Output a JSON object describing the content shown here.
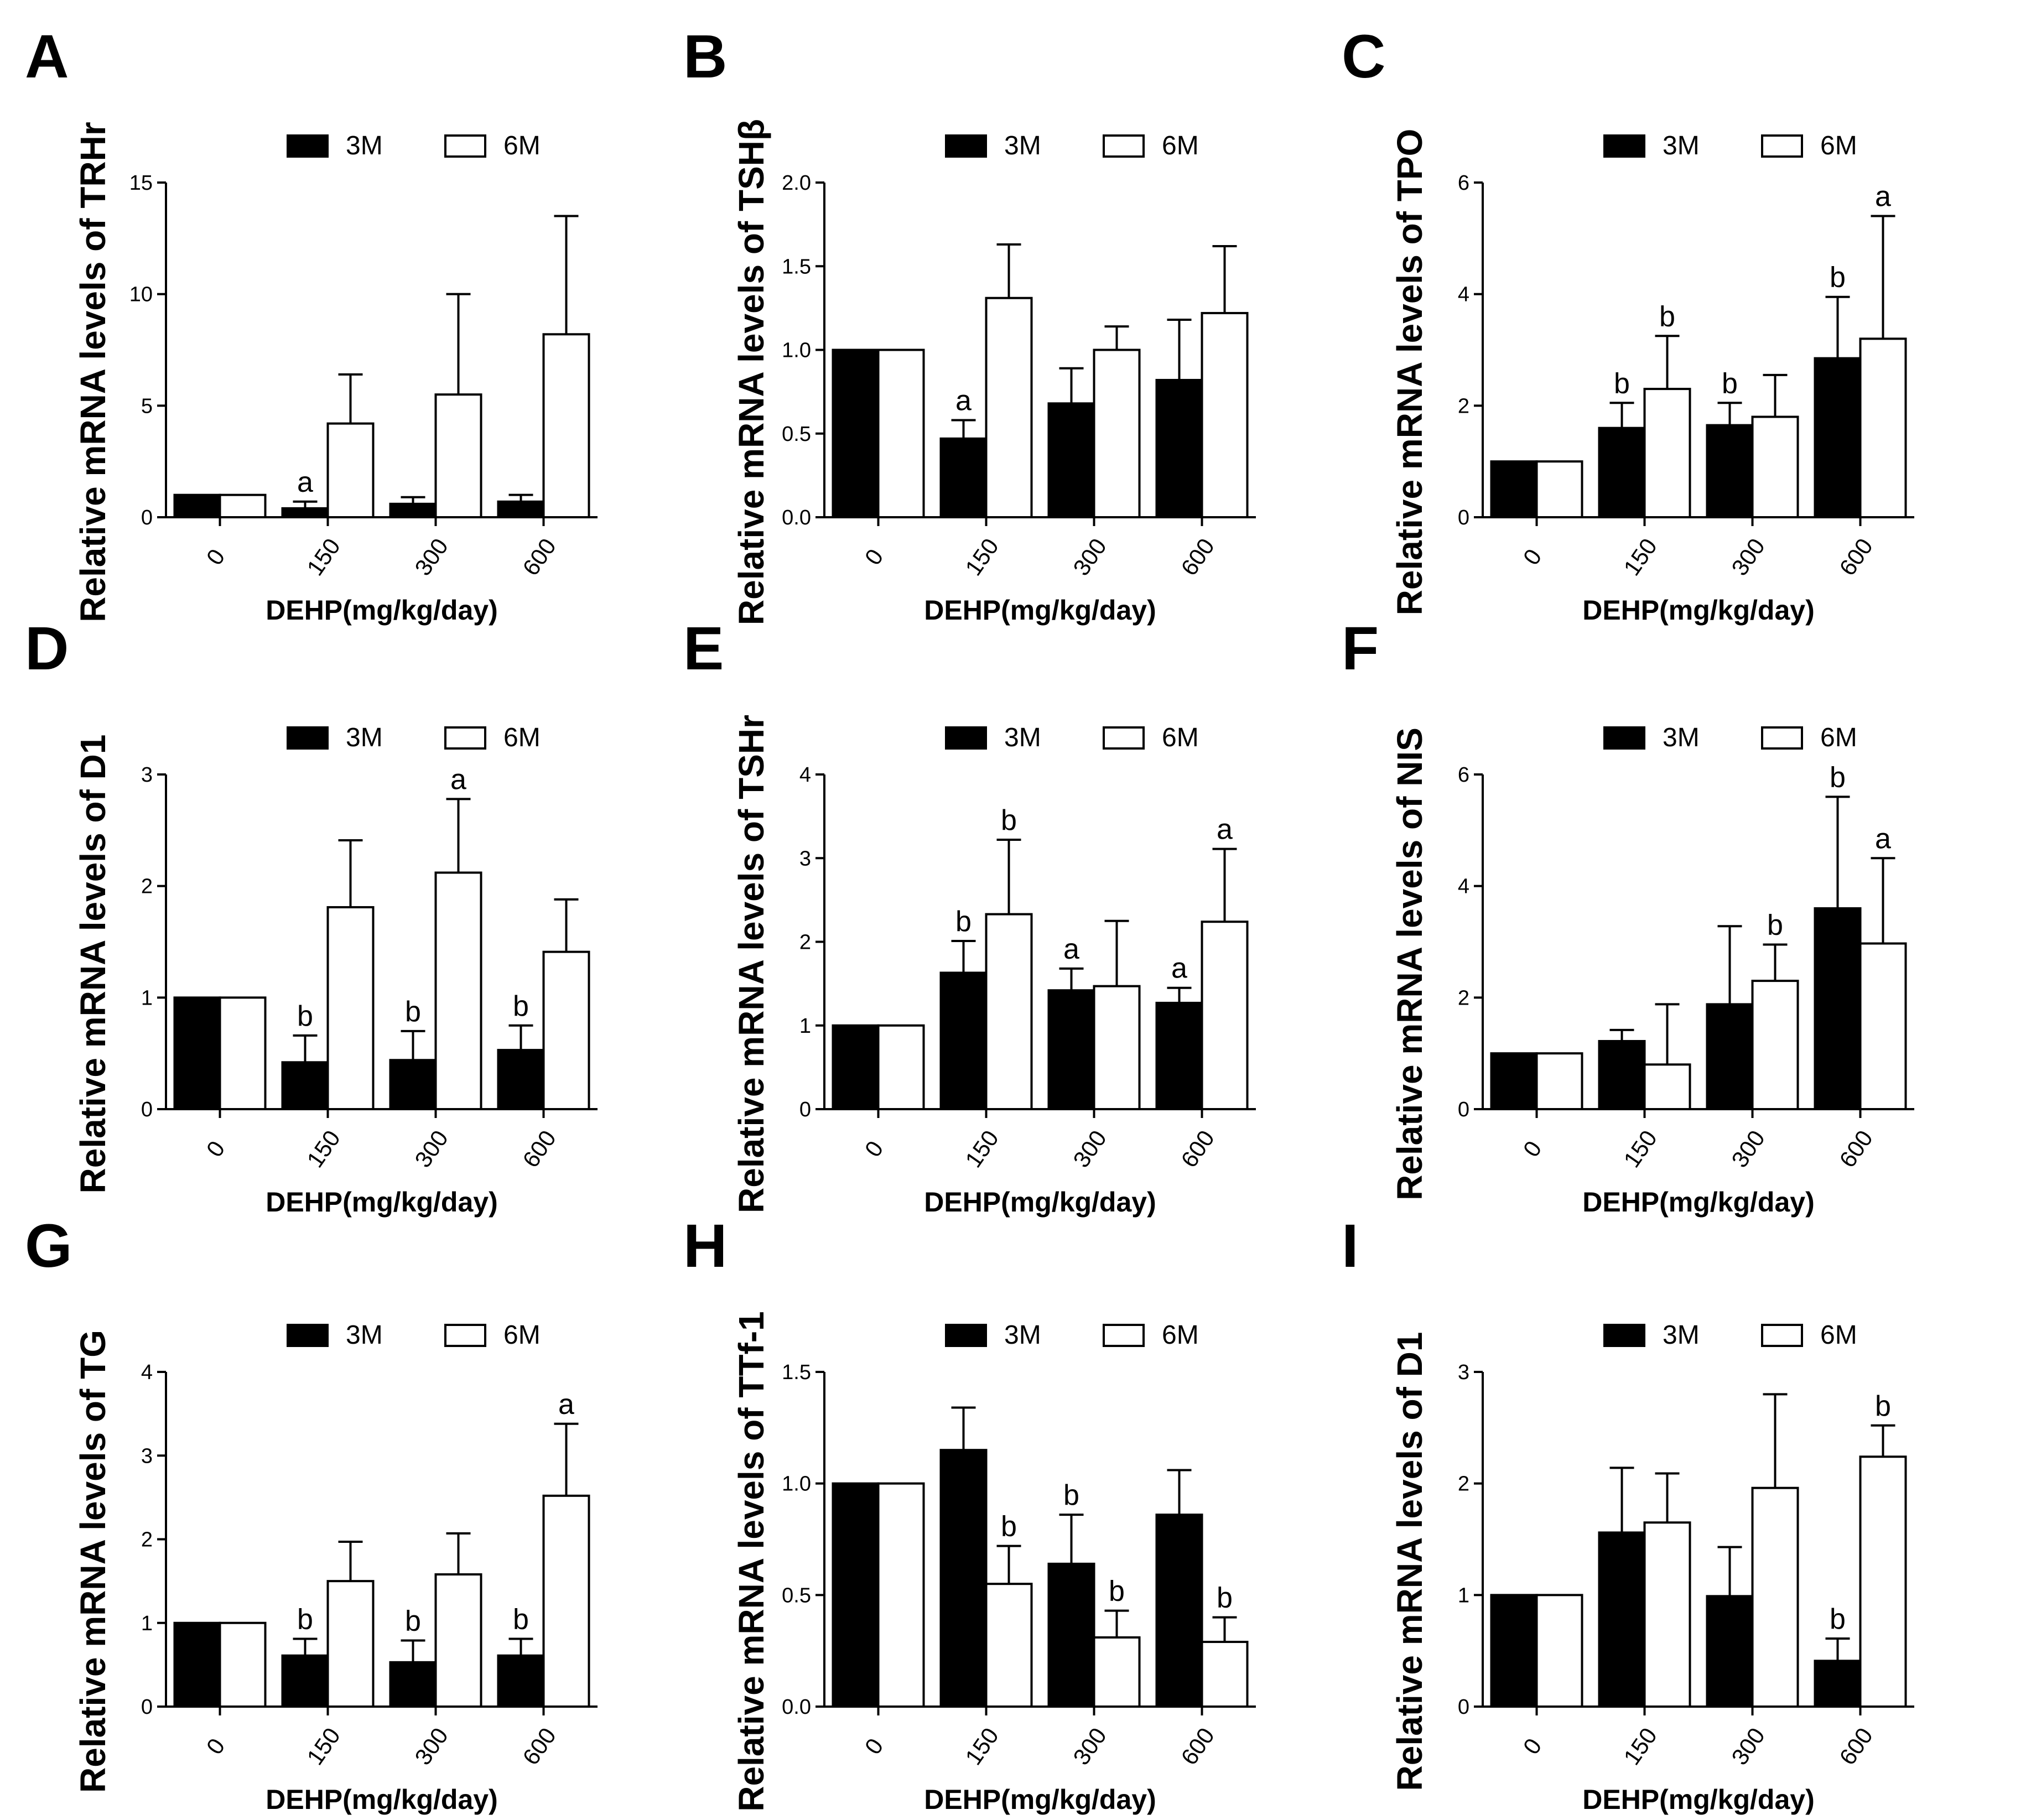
{
  "chart_data": [
    {
      "type": "bar",
      "letter": "A",
      "ylabel": "Relative mRNA levels of TRHr",
      "xlabel": "DEHP(mg/kg/day)",
      "categories": [
        "0",
        "150",
        "300",
        "600"
      ],
      "yticks": [
        0,
        5,
        10,
        15
      ],
      "ytick_labels": [
        "0",
        "5",
        "10",
        "15"
      ],
      "ylim": [
        0,
        15
      ],
      "series": [
        {
          "name": "3M",
          "color": "#000000",
          "values": [
            1.0,
            0.4,
            0.6,
            0.7
          ],
          "errors": [
            0,
            0.3,
            0.3,
            0.3
          ],
          "sig": [
            "",
            "a",
            "",
            ""
          ]
        },
        {
          "name": "6M",
          "color": "#ffffff",
          "values": [
            1.0,
            4.2,
            5.5,
            8.2
          ],
          "errors": [
            0,
            2.2,
            4.5,
            5.3
          ],
          "sig": [
            "",
            "",
            "",
            ""
          ]
        }
      ]
    },
    {
      "type": "bar",
      "letter": "B",
      "ylabel": "Relative mRNA levels of TSHβ",
      "xlabel": "DEHP(mg/kg/day)",
      "categories": [
        "0",
        "150",
        "300",
        "600"
      ],
      "yticks": [
        0,
        0.5,
        1,
        1.5,
        2
      ],
      "ytick_labels": [
        "0.0",
        "0.5",
        "1.0",
        "1.5",
        "2.0"
      ],
      "ylim": [
        0,
        2
      ],
      "series": [
        {
          "name": "3M",
          "color": "#000000",
          "values": [
            1.0,
            0.47,
            0.68,
            0.82
          ],
          "errors": [
            0,
            0.11,
            0.21,
            0.36
          ],
          "sig": [
            "",
            "a",
            "",
            ""
          ]
        },
        {
          "name": "6M",
          "color": "#ffffff",
          "values": [
            1.0,
            1.31,
            1.0,
            1.22
          ],
          "errors": [
            0,
            0.32,
            0.14,
            0.4
          ],
          "sig": [
            "",
            "",
            "",
            ""
          ]
        }
      ]
    },
    {
      "type": "bar",
      "letter": "C",
      "ylabel": "Relative mRNA levels of TPO",
      "xlabel": "DEHP(mg/kg/day)",
      "categories": [
        "0",
        "150",
        "300",
        "600"
      ],
      "yticks": [
        0,
        2,
        4,
        6
      ],
      "ytick_labels": [
        "0",
        "2",
        "4",
        "6"
      ],
      "ylim": [
        0,
        6
      ],
      "series": [
        {
          "name": "3M",
          "color": "#000000",
          "values": [
            1.0,
            1.6,
            1.65,
            2.85
          ],
          "errors": [
            0,
            0.45,
            0.4,
            1.1
          ],
          "sig": [
            "",
            "b",
            "b",
            "b"
          ]
        },
        {
          "name": "6M",
          "color": "#ffffff",
          "values": [
            1.0,
            2.3,
            1.8,
            3.2
          ],
          "errors": [
            0,
            0.95,
            0.75,
            2.2
          ],
          "sig": [
            "",
            "b",
            "",
            "a"
          ]
        }
      ]
    },
    {
      "type": "bar",
      "letter": "D",
      "ylabel": "Relative mRNA levels of D1",
      "xlabel": "DEHP(mg/kg/day)",
      "categories": [
        "0",
        "150",
        "300",
        "600"
      ],
      "yticks": [
        0,
        1,
        2,
        3
      ],
      "ytick_labels": [
        "0",
        "1",
        "2",
        "3"
      ],
      "ylim": [
        0,
        3
      ],
      "series": [
        {
          "name": "3M",
          "color": "#000000",
          "values": [
            1.0,
            0.42,
            0.44,
            0.53
          ],
          "errors": [
            0,
            0.24,
            0.26,
            0.22
          ],
          "sig": [
            "",
            "b",
            "b",
            "b"
          ]
        },
        {
          "name": "6M",
          "color": "#ffffff",
          "values": [
            1.0,
            1.81,
            2.12,
            1.41
          ],
          "errors": [
            0,
            0.6,
            0.66,
            0.47
          ],
          "sig": [
            "",
            "",
            "a",
            ""
          ]
        }
      ]
    },
    {
      "type": "bar",
      "letter": "E",
      "ylabel": "Relative mRNA levels of TSHr",
      "xlabel": "DEHP(mg/kg/day)",
      "categories": [
        "0",
        "150",
        "300",
        "600"
      ],
      "yticks": [
        0,
        1,
        2,
        3,
        4
      ],
      "ytick_labels": [
        "0",
        "1",
        "2",
        "3",
        "4"
      ],
      "ylim": [
        0,
        4
      ],
      "series": [
        {
          "name": "3M",
          "color": "#000000",
          "values": [
            1.0,
            1.63,
            1.42,
            1.27
          ],
          "errors": [
            0,
            0.38,
            0.26,
            0.18
          ],
          "sig": [
            "",
            "b",
            "a",
            "a"
          ]
        },
        {
          "name": "6M",
          "color": "#ffffff",
          "values": [
            1.0,
            2.33,
            1.47,
            2.24
          ],
          "errors": [
            0,
            0.89,
            0.78,
            0.87
          ],
          "sig": [
            "",
            "b",
            "",
            "a"
          ]
        }
      ]
    },
    {
      "type": "bar",
      "letter": "F",
      "ylabel": "Relative mRNA levels of NIS",
      "xlabel": "DEHP(mg/kg/day)",
      "categories": [
        "0",
        "150",
        "300",
        "600"
      ],
      "yticks": [
        0,
        2,
        4,
        6
      ],
      "ytick_labels": [
        "0",
        "2",
        "4",
        "6"
      ],
      "ylim": [
        0,
        6
      ],
      "series": [
        {
          "name": "3M",
          "color": "#000000",
          "values": [
            1.0,
            1.22,
            1.88,
            3.6
          ],
          "errors": [
            0,
            0.2,
            1.4,
            2.0
          ],
          "sig": [
            "",
            "",
            "",
            "b"
          ]
        },
        {
          "name": "6M",
          "color": "#ffffff",
          "values": [
            1.0,
            0.8,
            2.3,
            2.97
          ],
          "errors": [
            0,
            1.08,
            0.65,
            1.53
          ],
          "sig": [
            "",
            "",
            "b",
            "a"
          ]
        }
      ]
    },
    {
      "type": "bar",
      "letter": "G",
      "ylabel": "Relative mRNA levels of TG",
      "xlabel": "DEHP(mg/kg/day)",
      "categories": [
        "0",
        "150",
        "300",
        "600"
      ],
      "yticks": [
        0,
        1,
        2,
        3,
        4
      ],
      "ytick_labels": [
        "0",
        "1",
        "2",
        "3",
        "4"
      ],
      "ylim": [
        0,
        4
      ],
      "series": [
        {
          "name": "3M",
          "color": "#000000",
          "values": [
            1.0,
            0.61,
            0.53,
            0.61
          ],
          "errors": [
            0,
            0.2,
            0.26,
            0.2
          ],
          "sig": [
            "",
            "b",
            "b",
            "b"
          ]
        },
        {
          "name": "6M",
          "color": "#ffffff",
          "values": [
            1.0,
            1.5,
            1.58,
            2.52
          ],
          "errors": [
            0,
            0.47,
            0.49,
            0.86
          ],
          "sig": [
            "",
            "",
            "",
            "a"
          ]
        }
      ]
    },
    {
      "type": "bar",
      "letter": "H",
      "ylabel": "Relative mRNA levels of TTf-1",
      "xlabel": "DEHP(mg/kg/day)",
      "categories": [
        "0",
        "150",
        "300",
        "600"
      ],
      "yticks": [
        0,
        0.5,
        1,
        1.5
      ],
      "ytick_labels": [
        "0.0",
        "0.5",
        "1.0",
        "1.5"
      ],
      "ylim": [
        0,
        1.5
      ],
      "series": [
        {
          "name": "3M",
          "color": "#000000",
          "values": [
            1.0,
            1.15,
            0.64,
            0.86
          ],
          "errors": [
            0,
            0.19,
            0.22,
            0.2
          ],
          "sig": [
            "",
            "",
            "b",
            ""
          ]
        },
        {
          "name": "6M",
          "color": "#ffffff",
          "values": [
            1.0,
            0.55,
            0.31,
            0.29
          ],
          "errors": [
            0,
            0.17,
            0.12,
            0.11
          ],
          "sig": [
            "",
            "b",
            "b",
            "b"
          ]
        }
      ]
    },
    {
      "type": "bar",
      "letter": "I",
      "ylabel": "Relative mRNA levels of D1",
      "xlabel": "DEHP(mg/kg/day)",
      "categories": [
        "0",
        "150",
        "300",
        "600"
      ],
      "yticks": [
        0,
        1,
        2,
        3
      ],
      "ytick_labels": [
        "0",
        "1",
        "2",
        "3"
      ],
      "ylim": [
        0,
        3
      ],
      "series": [
        {
          "name": "3M",
          "color": "#000000",
          "values": [
            1.0,
            1.56,
            0.99,
            0.41
          ],
          "errors": [
            0,
            0.58,
            0.44,
            0.2
          ],
          "sig": [
            "",
            "",
            "",
            "b"
          ]
        },
        {
          "name": "6M",
          "color": "#ffffff",
          "values": [
            1.0,
            1.65,
            1.96,
            2.24
          ],
          "errors": [
            0,
            0.44,
            0.84,
            0.28
          ],
          "sig": [
            "",
            "",
            "",
            "b"
          ]
        }
      ]
    }
  ]
}
